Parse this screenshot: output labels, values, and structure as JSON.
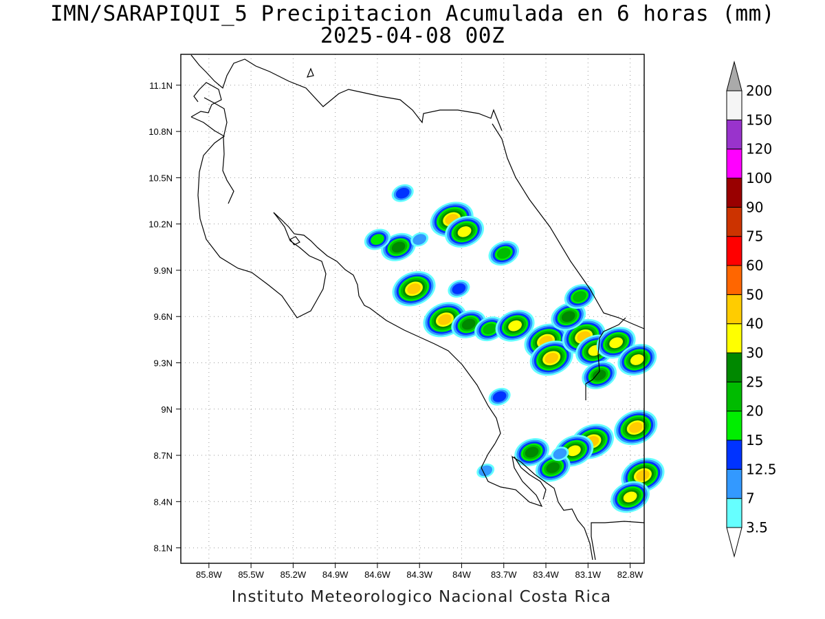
{
  "title": {
    "line1": "IMN/SARAPIQUI_5 Precipitacion Acumulada en 6 horas (mm)",
    "line2": "2025-04-08 00Z"
  },
  "footer": "Instituto Meteorologico Nacional Costa Rica",
  "map": {
    "lon_range": [
      -86.0,
      -82.7
    ],
    "lat_range": [
      8.0,
      11.3
    ],
    "x_ticks": [
      "85.8W",
      "85.5W",
      "85.2W",
      "84.9W",
      "84.6W",
      "84.3W",
      "84W",
      "83.7W",
      "83.4W",
      "83.1W",
      "82.8W"
    ],
    "x_tick_lons": [
      -85.8,
      -85.5,
      -85.2,
      -84.9,
      -84.6,
      -84.3,
      -84.0,
      -83.7,
      -83.4,
      -83.1,
      -82.8
    ],
    "y_ticks": [
      "8.1N",
      "8.4N",
      "8.7N",
      "9N",
      "9.3N",
      "9.6N",
      "9.9N",
      "10.2N",
      "10.5N",
      "10.8N",
      "11.1N"
    ],
    "y_tick_lats": [
      8.1,
      8.4,
      8.7,
      9.0,
      9.3,
      9.6,
      9.9,
      10.2,
      10.5,
      10.8,
      11.1
    ],
    "grid": "dotted",
    "precip_cells": [
      {
        "lon": -84.07,
        "lat": 10.23,
        "value": 45
      },
      {
        "lon": -83.98,
        "lat": 10.15,
        "value": 30
      },
      {
        "lon": -83.7,
        "lat": 10.01,
        "value": 20
      },
      {
        "lon": -84.45,
        "lat": 10.05,
        "value": 25
      },
      {
        "lon": -84.6,
        "lat": 10.1,
        "value": 15
      },
      {
        "lon": -84.34,
        "lat": 9.78,
        "value": 40
      },
      {
        "lon": -84.12,
        "lat": 9.58,
        "value": 40
      },
      {
        "lon": -83.95,
        "lat": 9.55,
        "value": 25
      },
      {
        "lon": -83.8,
        "lat": 9.52,
        "value": 20
      },
      {
        "lon": -83.62,
        "lat": 9.54,
        "value": 30
      },
      {
        "lon": -83.4,
        "lat": 9.44,
        "value": 40
      },
      {
        "lon": -83.36,
        "lat": 9.33,
        "value": 40
      },
      {
        "lon": -83.13,
        "lat": 9.47,
        "value": 40
      },
      {
        "lon": -83.05,
        "lat": 9.38,
        "value": 30
      },
      {
        "lon": -82.9,
        "lat": 9.43,
        "value": 30
      },
      {
        "lon": -82.75,
        "lat": 9.32,
        "value": 30
      },
      {
        "lon": -83.02,
        "lat": 9.22,
        "value": 25
      },
      {
        "lon": -83.24,
        "lat": 9.6,
        "value": 25
      },
      {
        "lon": -83.16,
        "lat": 9.73,
        "value": 20
      },
      {
        "lon": -83.07,
        "lat": 8.79,
        "value": 40
      },
      {
        "lon": -83.2,
        "lat": 8.73,
        "value": 30
      },
      {
        "lon": -83.35,
        "lat": 8.62,
        "value": 25
      },
      {
        "lon": -82.76,
        "lat": 8.88,
        "value": 40
      },
      {
        "lon": -82.71,
        "lat": 8.57,
        "value": 40
      },
      {
        "lon": -82.8,
        "lat": 8.43,
        "value": 30
      },
      {
        "lon": -84.42,
        "lat": 10.4,
        "value": 12.5
      },
      {
        "lon": -84.3,
        "lat": 10.1,
        "value": 7
      },
      {
        "lon": -84.02,
        "lat": 9.78,
        "value": 12.5
      },
      {
        "lon": -83.73,
        "lat": 9.08,
        "value": 12.5
      },
      {
        "lon": -83.3,
        "lat": 8.71,
        "value": 7
      },
      {
        "lon": -83.5,
        "lat": 8.72,
        "value": 25
      },
      {
        "lon": -83.83,
        "lat": 8.6,
        "value": 7
      }
    ]
  },
  "colorbar": {
    "labels": [
      "3.5",
      "7",
      "12.5",
      "15",
      "20",
      "25",
      "30",
      "40",
      "50",
      "60",
      "75",
      "90",
      "100",
      "120",
      "150",
      "200"
    ],
    "colors": [
      "#66ffff",
      "#3399ff",
      "#0033ff",
      "#00ee00",
      "#00bb00",
      "#008800",
      "#ffff00",
      "#ffcc00",
      "#ff6600",
      "#ff0000",
      "#cc3300",
      "#990000",
      "#ff00ff",
      "#9933cc",
      "#f5f5f5"
    ],
    "low_arrow_color": "#ffffff",
    "high_arrow_color": "#aaaaaa"
  }
}
